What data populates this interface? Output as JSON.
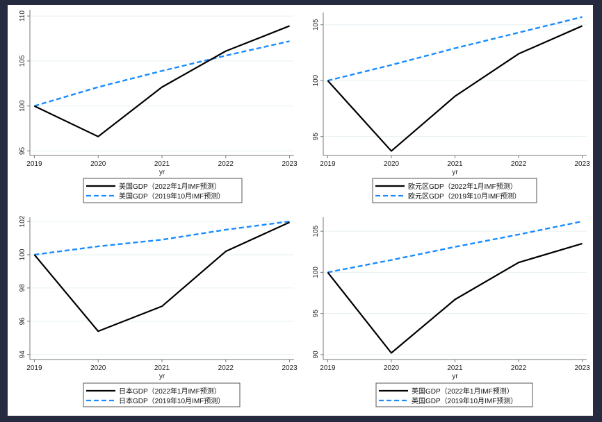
{
  "chart_data": [
    {
      "type": "line",
      "xlabel": "yr",
      "x": [
        2019,
        2020,
        2021,
        2022,
        2023
      ],
      "xticks": [
        "2019",
        "2020",
        "2021",
        "2022",
        "2023"
      ],
      "xlim": [
        2018.93,
        2023.07
      ],
      "ylim": [
        94.5,
        110.7
      ],
      "yticks": [
        95,
        100,
        105,
        110
      ],
      "grid": true,
      "legend": "bottom",
      "series": [
        {
          "name": "美国GDP（2022年1月IMF预测）",
          "values": [
            100,
            96.6,
            102.1,
            106.1,
            108.9
          ],
          "color": "#000000",
          "style": "solid"
        },
        {
          "name": "美国GDP（2019年10月IMF预测）",
          "values": [
            100,
            102.1,
            103.9,
            105.6,
            107.2
          ],
          "color": "#1a8cff",
          "style": "dashed"
        }
      ]
    },
    {
      "type": "line",
      "xlabel": "yr",
      "x": [
        2019,
        2020,
        2021,
        2022,
        2023
      ],
      "xticks": [
        "2019",
        "2020",
        "2021",
        "2022",
        "2023"
      ],
      "xlim": [
        2018.93,
        2023.07
      ],
      "ylim": [
        93.3,
        106.1
      ],
      "yticks": [
        95,
        100,
        105
      ],
      "grid": true,
      "legend": "bottom",
      "series": [
        {
          "name": "欧元区GDP（2022年1月IMF预测）",
          "values": [
            100,
            93.7,
            98.6,
            102.4,
            104.9
          ],
          "color": "#000000",
          "style": "solid"
        },
        {
          "name": "欧元区GDP（2019年10月IMF预测）",
          "values": [
            100,
            101.4,
            102.9,
            104.3,
            105.7
          ],
          "color": "#1a8cff",
          "style": "dashed"
        }
      ]
    },
    {
      "type": "line",
      "xlabel": "yr",
      "x": [
        2019,
        2020,
        2021,
        2022,
        2023
      ],
      "xticks": [
        "2019",
        "2020",
        "2021",
        "2022",
        "2023"
      ],
      "xlim": [
        2018.93,
        2023.07
      ],
      "ylim": [
        93.7,
        102.25
      ],
      "yticks": [
        94,
        96,
        98,
        100,
        102
      ],
      "grid": true,
      "legend": "bottom",
      "series": [
        {
          "name": "日本GDP（2022年1月IMF预测）",
          "values": [
            100,
            95.4,
            96.9,
            100.2,
            101.95
          ],
          "color": "#000000",
          "style": "solid"
        },
        {
          "name": "日本GDP（2019年10月IMF预测）",
          "values": [
            100,
            100.5,
            100.9,
            101.5,
            102.0
          ],
          "color": "#1a8cff",
          "style": "dashed"
        }
      ]
    },
    {
      "type": "line",
      "xlabel": "yr",
      "x": [
        2019,
        2020,
        2021,
        2022,
        2023
      ],
      "xticks": [
        "2019",
        "2020",
        "2021",
        "2022",
        "2023"
      ],
      "xlim": [
        2018.93,
        2023.07
      ],
      "ylim": [
        89.4,
        106.7
      ],
      "yticks": [
        90,
        95,
        100,
        105
      ],
      "grid": true,
      "legend": "bottom",
      "series": [
        {
          "name": "英国GDP（2022年1月IMF预测）",
          "values": [
            100,
            90.2,
            96.7,
            101.2,
            103.5
          ],
          "color": "#000000",
          "style": "solid"
        },
        {
          "name": "英国GDP（2019年10月IMF预测）",
          "values": [
            100,
            101.5,
            103.1,
            104.6,
            106.2
          ],
          "color": "#1a8cff",
          "style": "dashed"
        }
      ]
    }
  ]
}
